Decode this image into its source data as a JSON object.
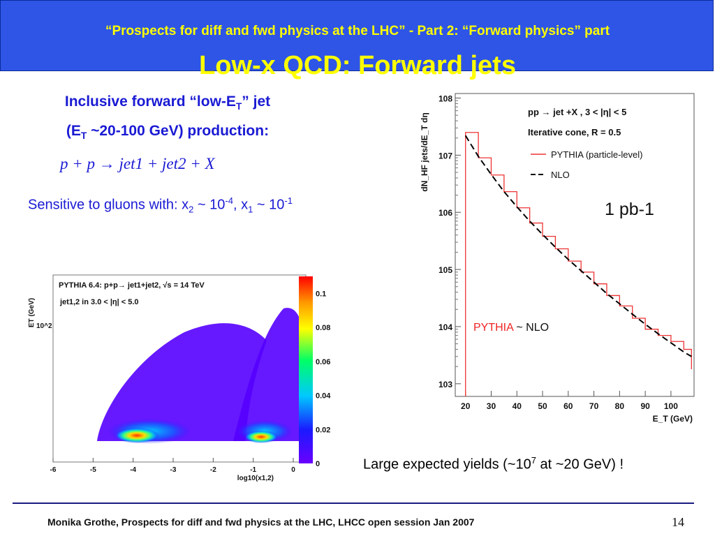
{
  "header": {
    "subtitle": "“Prospects for diff and fwd physics at the LHC” - Part 2: “Forward physics” part",
    "title": "Low-x QCD: Forward jets"
  },
  "left": {
    "line1_pre": "Inclusive forward “low-E",
    "line1_sub": "T",
    "line1_post": "” jet",
    "line2_pre": "(E",
    "line2_sub": "T",
    "line2_post": " ~20-100 GeV) production:",
    "equation": "p + p  → jet1 + jet2 + X",
    "sens_pre": "Sensitive to gluons with:  x",
    "sens_sub1": "2",
    "sens_mid1": " ~ 10",
    "sens_sup1": "-4",
    "sens_mid2": ", x",
    "sens_sub2": "1",
    "sens_mid3": " ~ 10",
    "sens_sup2": "-1"
  },
  "yields": {
    "pre": "Large expected yields (~10",
    "sup": "7",
    "post": " at ~20 GeV) !"
  },
  "footer": {
    "text": "Monika Grothe, Prospects for diff and fwd physics at the LHC, LHCC open session Jan 2007",
    "page": "14"
  },
  "colors": {
    "header_bg": "#2e55e6",
    "header_text": "#ffff00",
    "body_blue": "#1a1ad4",
    "pythia": "#ee3333"
  },
  "chart_data": [
    {
      "type": "line",
      "title": "pp → jet +X , 3 < |η| < 5",
      "subtitle": "Iterative cone, R = 0.5",
      "xlabel": "E_T (GeV)",
      "ylabel": "dN_HF jets/dE_T dη",
      "yscale": "log",
      "xlim": [
        16,
        109
      ],
      "ylim": [
        600,
        120000000
      ],
      "x_ticks": [
        "20",
        "30",
        "40",
        "50",
        "60",
        "70",
        "80",
        "90",
        "100"
      ],
      "y_ticks": [
        "10^3",
        "10^4",
        "10^5",
        "10^6",
        "10^7",
        "10^8"
      ],
      "legend": [
        "PYTHIA (particle-level)",
        "NLO"
      ],
      "legend_position": "top-right",
      "annotation_lumi": "1 pb-1",
      "annotation_cmp_a": "PYTHIA",
      "annotation_cmp_b": " ~ NLO",
      "series": [
        {
          "name": "PYTHIA (particle-level)",
          "color": "#ee3333",
          "x": [
            20,
            25,
            30,
            35,
            40,
            45,
            50,
            55,
            60,
            65,
            70,
            75,
            80,
            85,
            90,
            95,
            100,
            105,
            108
          ],
          "y": [
            25000000,
            9000000,
            4500000,
            2300000,
            1200000,
            650000,
            380000,
            230000,
            140000,
            90000,
            56000,
            35000,
            23000,
            14000,
            9000,
            7000,
            5500,
            4000,
            1800
          ]
        },
        {
          "name": "NLO",
          "color": "#000000",
          "x": [
            20,
            25,
            30,
            35,
            40,
            45,
            50,
            55,
            60,
            65,
            70,
            75,
            80,
            85,
            90,
            95,
            100,
            105,
            108
          ],
          "y": [
            22000000,
            9500000,
            4600000,
            2300000,
            1250000,
            700000,
            410000,
            245000,
            150000,
            95000,
            60000,
            38000,
            25000,
            16500,
            11000,
            7500,
            5200,
            3600,
            3000
          ]
        }
      ]
    },
    {
      "type": "heatmap",
      "title": "PYTHIA 6.4: p+p→ jet1+jet2, √s = 14 TeV",
      "subtitle": "jet1,2 in 3.0 < |η| < 5.0",
      "xlabel": "log10(x1,2)",
      "ylabel": "ET (GeV)",
      "xlim": [
        -6,
        0
      ],
      "x_ticks": [
        "-6",
        "-5",
        "-4",
        "-3",
        "-2",
        "-1",
        "0"
      ],
      "y_tick": "10^2",
      "colorbar_ticks": [
        "0",
        "0.02",
        "0.04",
        "0.06",
        "0.08",
        "0.1"
      ],
      "colorbar_range": [
        0,
        0.11
      ]
    }
  ]
}
